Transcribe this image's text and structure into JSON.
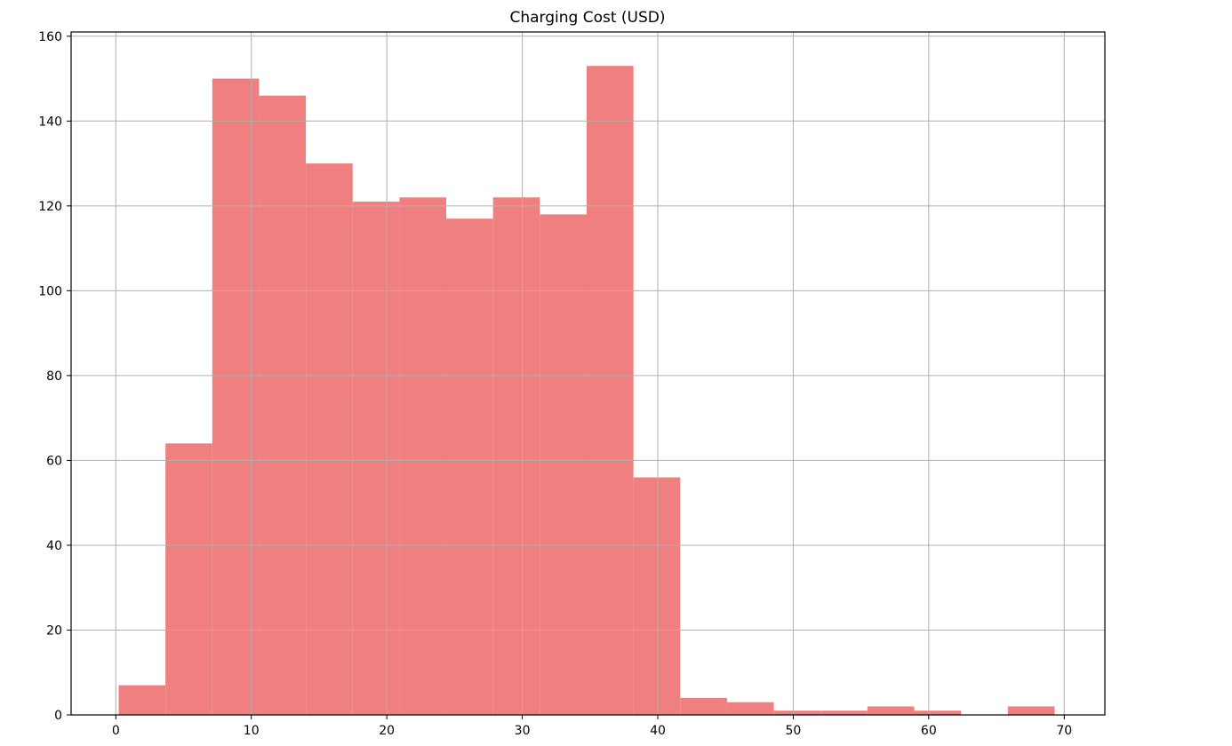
{
  "chart_data": {
    "type": "bar",
    "title": "Charging Cost (USD)",
    "xlabel": "",
    "ylabel": "",
    "xlim": [
      -3.3,
      73.0
    ],
    "ylim": [
      0,
      161
    ],
    "xticks": [
      0,
      10,
      20,
      30,
      40,
      50,
      60,
      70
    ],
    "yticks": [
      0,
      20,
      40,
      60,
      80,
      100,
      120,
      140,
      160
    ],
    "grid": true,
    "bar_color": "#f08080",
    "bins": {
      "start": 0.21,
      "width": 3.454,
      "counts": [
        7,
        64,
        150,
        146,
        130,
        121,
        122,
        117,
        122,
        118,
        153,
        56,
        4,
        3,
        1,
        1,
        2,
        1,
        0,
        2
      ]
    }
  }
}
